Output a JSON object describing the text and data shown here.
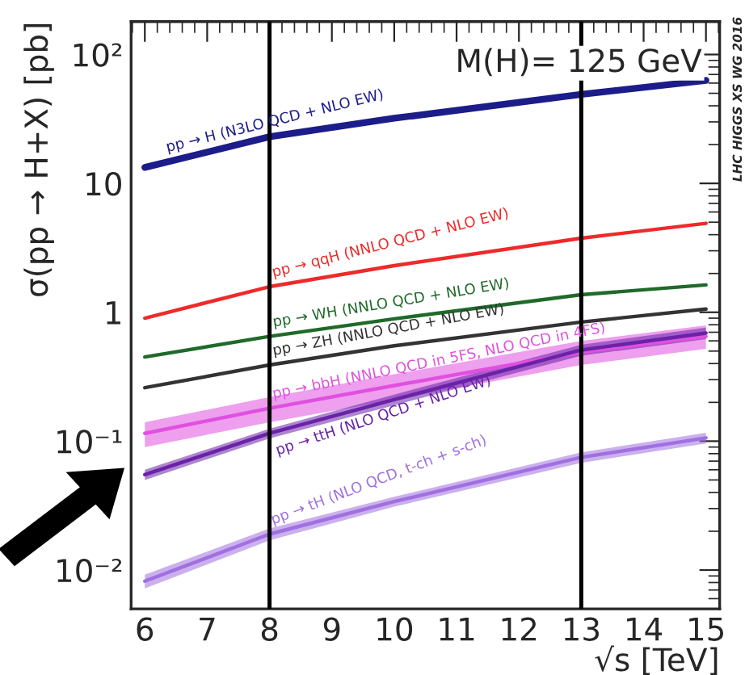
{
  "chart_data": {
    "type": "line",
    "xlabel": "√s [TeV]",
    "ylabel": "σ(pp → H+X) [pb]",
    "x": [
      6,
      8,
      10,
      13,
      15
    ],
    "series": [
      {
        "name": "pp → H (N3LO QCD + NLO EW)",
        "color": "#1c1c8a",
        "values": [
          13.3,
          23,
          32,
          49,
          63
        ]
      },
      {
        "name": "pp → qqH (NNLO QCD + NLO EW)",
        "color": "#ee2a2a",
        "values": [
          0.9,
          1.58,
          2.3,
          3.76,
          4.9
        ]
      },
      {
        "name": "pp → WH (NNLO QCD + NLO EW)",
        "color": "#1f6a2a",
        "values": [
          0.45,
          0.65,
          0.89,
          1.37,
          1.63
        ]
      },
      {
        "name": "pp → ZH (NNLO QCD + NLO EW)",
        "color": "#333333",
        "values": [
          0.26,
          0.39,
          0.55,
          0.84,
          1.06
        ]
      },
      {
        "name": "pp → bbH (NNLO QCD in 5FS, NLO QCD in 4FS)",
        "color": "#e050e0",
        "values": [
          0.115,
          0.18,
          0.27,
          0.49,
          0.65
        ],
        "lower": [
          0.09,
          0.14,
          0.21,
          0.39,
          0.52
        ],
        "upper": [
          0.14,
          0.22,
          0.33,
          0.6,
          0.79
        ]
      },
      {
        "name": "pp → ttH (NLO QCD + NLO EW)",
        "color": "#6a22a8",
        "values": [
          0.055,
          0.115,
          0.21,
          0.51,
          0.69
        ],
        "lower": [
          0.05,
          0.105,
          0.19,
          0.46,
          0.62
        ],
        "upper": [
          0.06,
          0.125,
          0.23,
          0.56,
          0.76
        ]
      },
      {
        "name": "pp → tH (NLO QCD, t-ch + s-ch)",
        "color": "#a070e0",
        "values": [
          0.0082,
          0.019,
          0.034,
          0.075,
          0.106
        ],
        "lower": [
          0.0072,
          0.017,
          0.031,
          0.068,
          0.096
        ],
        "upper": [
          0.0092,
          0.021,
          0.037,
          0.082,
          0.116
        ]
      }
    ],
    "ref_lines": [
      {
        "axis": "x",
        "value": 8,
        "color": "#000000"
      },
      {
        "axis": "x",
        "value": 13,
        "color": "#000000"
      }
    ],
    "log": "y",
    "xlim": [
      5.78,
      15.22
    ],
    "xticks": [
      6,
      7,
      8,
      9,
      10,
      11,
      12,
      13,
      14,
      15
    ],
    "ylim": [
      0.005,
      180
    ],
    "yticks": [
      {
        "value": 0.01,
        "label": "10⁻²"
      },
      {
        "value": 0.1,
        "label": "10⁻¹"
      },
      1,
      10,
      {
        "value": 100,
        "label": "10²"
      }
    ],
    "annotations": [
      "M(H)= 125 GeV",
      "LHC HIGGS XS WG 2016"
    ]
  }
}
